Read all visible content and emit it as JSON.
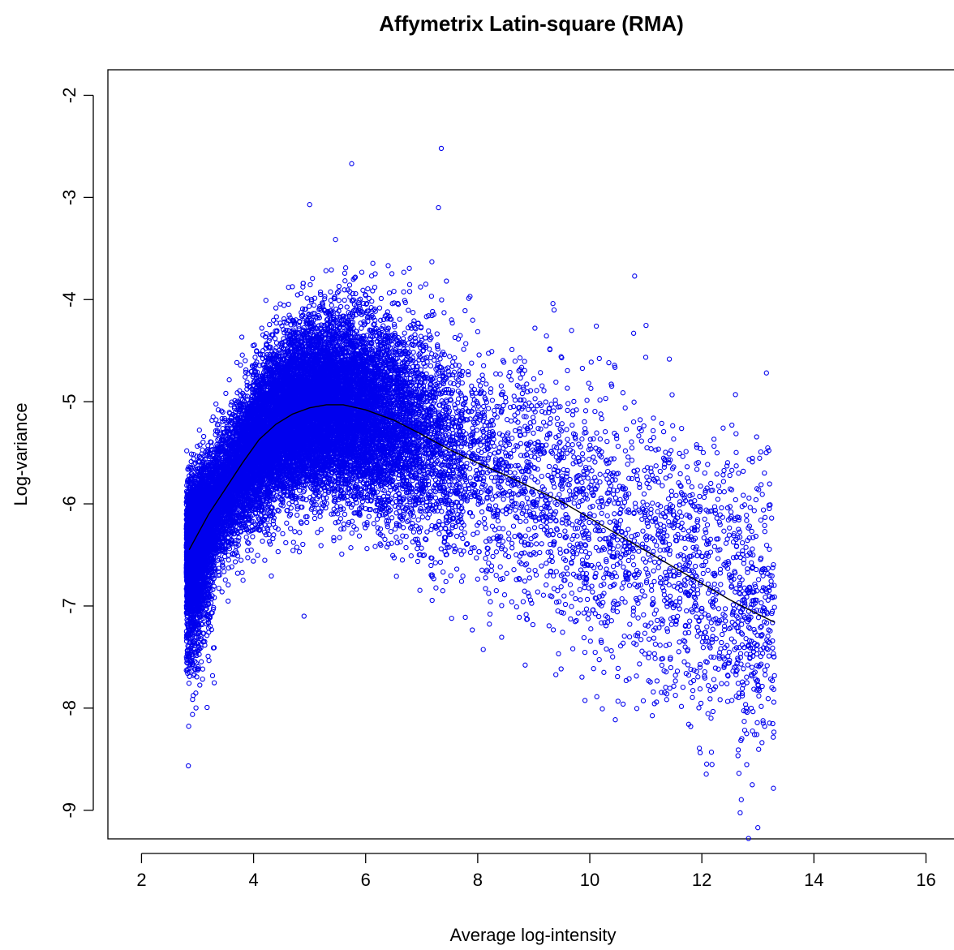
{
  "chart_data": {
    "type": "scatter",
    "title": "Affymetrix Latin-square (RMA)",
    "xlabel": "Average log-intensity",
    "ylabel": "Log-variance",
    "xlim": [
      1.4,
      16.5
    ],
    "ylim": [
      -9.28,
      -1.75
    ],
    "x_ticks": [
      2,
      4,
      6,
      8,
      10,
      12,
      14,
      16
    ],
    "y_ticks": [
      -9,
      -8,
      -7,
      -6,
      -5,
      -4,
      -3,
      -2
    ],
    "x_tick_labels": [
      "2",
      "4",
      "6",
      "8",
      "10",
      "12",
      "14",
      "16"
    ],
    "y_tick_labels": [
      "-9",
      "-8",
      "-7",
      "-6",
      "-5",
      "-4",
      "-3",
      "-2"
    ],
    "grid": false,
    "legend": "none",
    "point_color": "#0000ee",
    "point_marker": "open-circle",
    "series": [
      {
        "kind": "points",
        "density_model": {
          "approx_count": 22000,
          "x_range": [
            2.8,
            13.3
          ],
          "bulk_center_x": 4.8,
          "spread_sd_min": 0.28,
          "spread_sd_max": 0.7
        },
        "notable_points": [
          {
            "x": 7.35,
            "y": -2.52
          },
          {
            "x": 5.75,
            "y": -2.67
          },
          {
            "x": 5.0,
            "y": -3.07
          },
          {
            "x": 7.3,
            "y": -3.1
          },
          {
            "x": 10.8,
            "y": -3.77
          },
          {
            "x": 4.9,
            "y": -7.1
          },
          {
            "x": 12.9,
            "y": -8.75
          },
          {
            "x": 13.0,
            "y": -9.17
          },
          {
            "x": 12.8,
            "y": -8.25
          },
          {
            "x": 11.8,
            "y": -8.18
          },
          {
            "x": 2.8,
            "y": -7.63
          },
          {
            "x": 2.95,
            "y": -7.62
          },
          {
            "x": 12.6,
            "y": -4.93
          },
          {
            "x": 13.15,
            "y": -5.5
          }
        ]
      },
      {
        "kind": "line",
        "x": [
          2.85,
          3.0,
          3.2,
          3.5,
          3.8,
          4.1,
          4.4,
          4.7,
          5.0,
          5.3,
          5.6,
          6.0,
          6.5,
          7.0,
          7.5,
          8.0,
          8.5,
          9.0,
          9.5,
          10.0,
          10.5,
          11.0,
          11.5,
          12.0,
          12.5,
          13.0,
          13.3
        ],
        "y": [
          -6.45,
          -6.3,
          -6.1,
          -5.85,
          -5.6,
          -5.37,
          -5.22,
          -5.12,
          -5.06,
          -5.03,
          -5.03,
          -5.08,
          -5.18,
          -5.32,
          -5.47,
          -5.6,
          -5.72,
          -5.85,
          -5.98,
          -6.14,
          -6.3,
          -6.46,
          -6.62,
          -6.78,
          -6.94,
          -7.08,
          -7.16
        ]
      }
    ]
  }
}
